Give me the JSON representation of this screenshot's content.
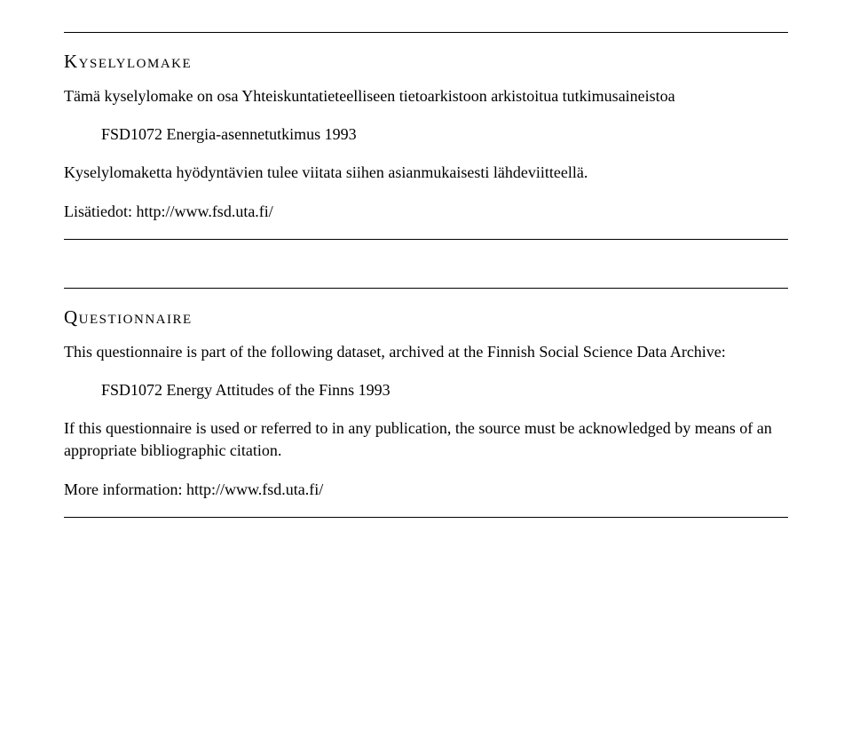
{
  "top": {
    "heading": "Kyselylomake",
    "intro": "Tämä kyselylomake on osa Yhteiskuntatieteelliseen tietoarkistoon arkistoitua tutkimusaineistoa",
    "dataset": "FSD1072 Energia-asennetutkimus 1993",
    "note": "Kyselylomaketta hyödyntävien tulee viitata siihen asianmukaisesti lähdeviitteellä.",
    "moreinfo": "Lisätiedot: http://www.fsd.uta.fi/"
  },
  "bottom": {
    "heading": "Questionnaire",
    "intro": "This questionnaire is part of the following dataset, archived at the Finnish Social Science Data Archive:",
    "dataset": "FSD1072 Energy Attitudes of the Finns 1993",
    "note": "If this questionnaire is used or referred to in any publication, the source must be acknowledged by means of an appropriate bibliographic citation.",
    "moreinfo": "More information: http://www.fsd.uta.fi/"
  }
}
